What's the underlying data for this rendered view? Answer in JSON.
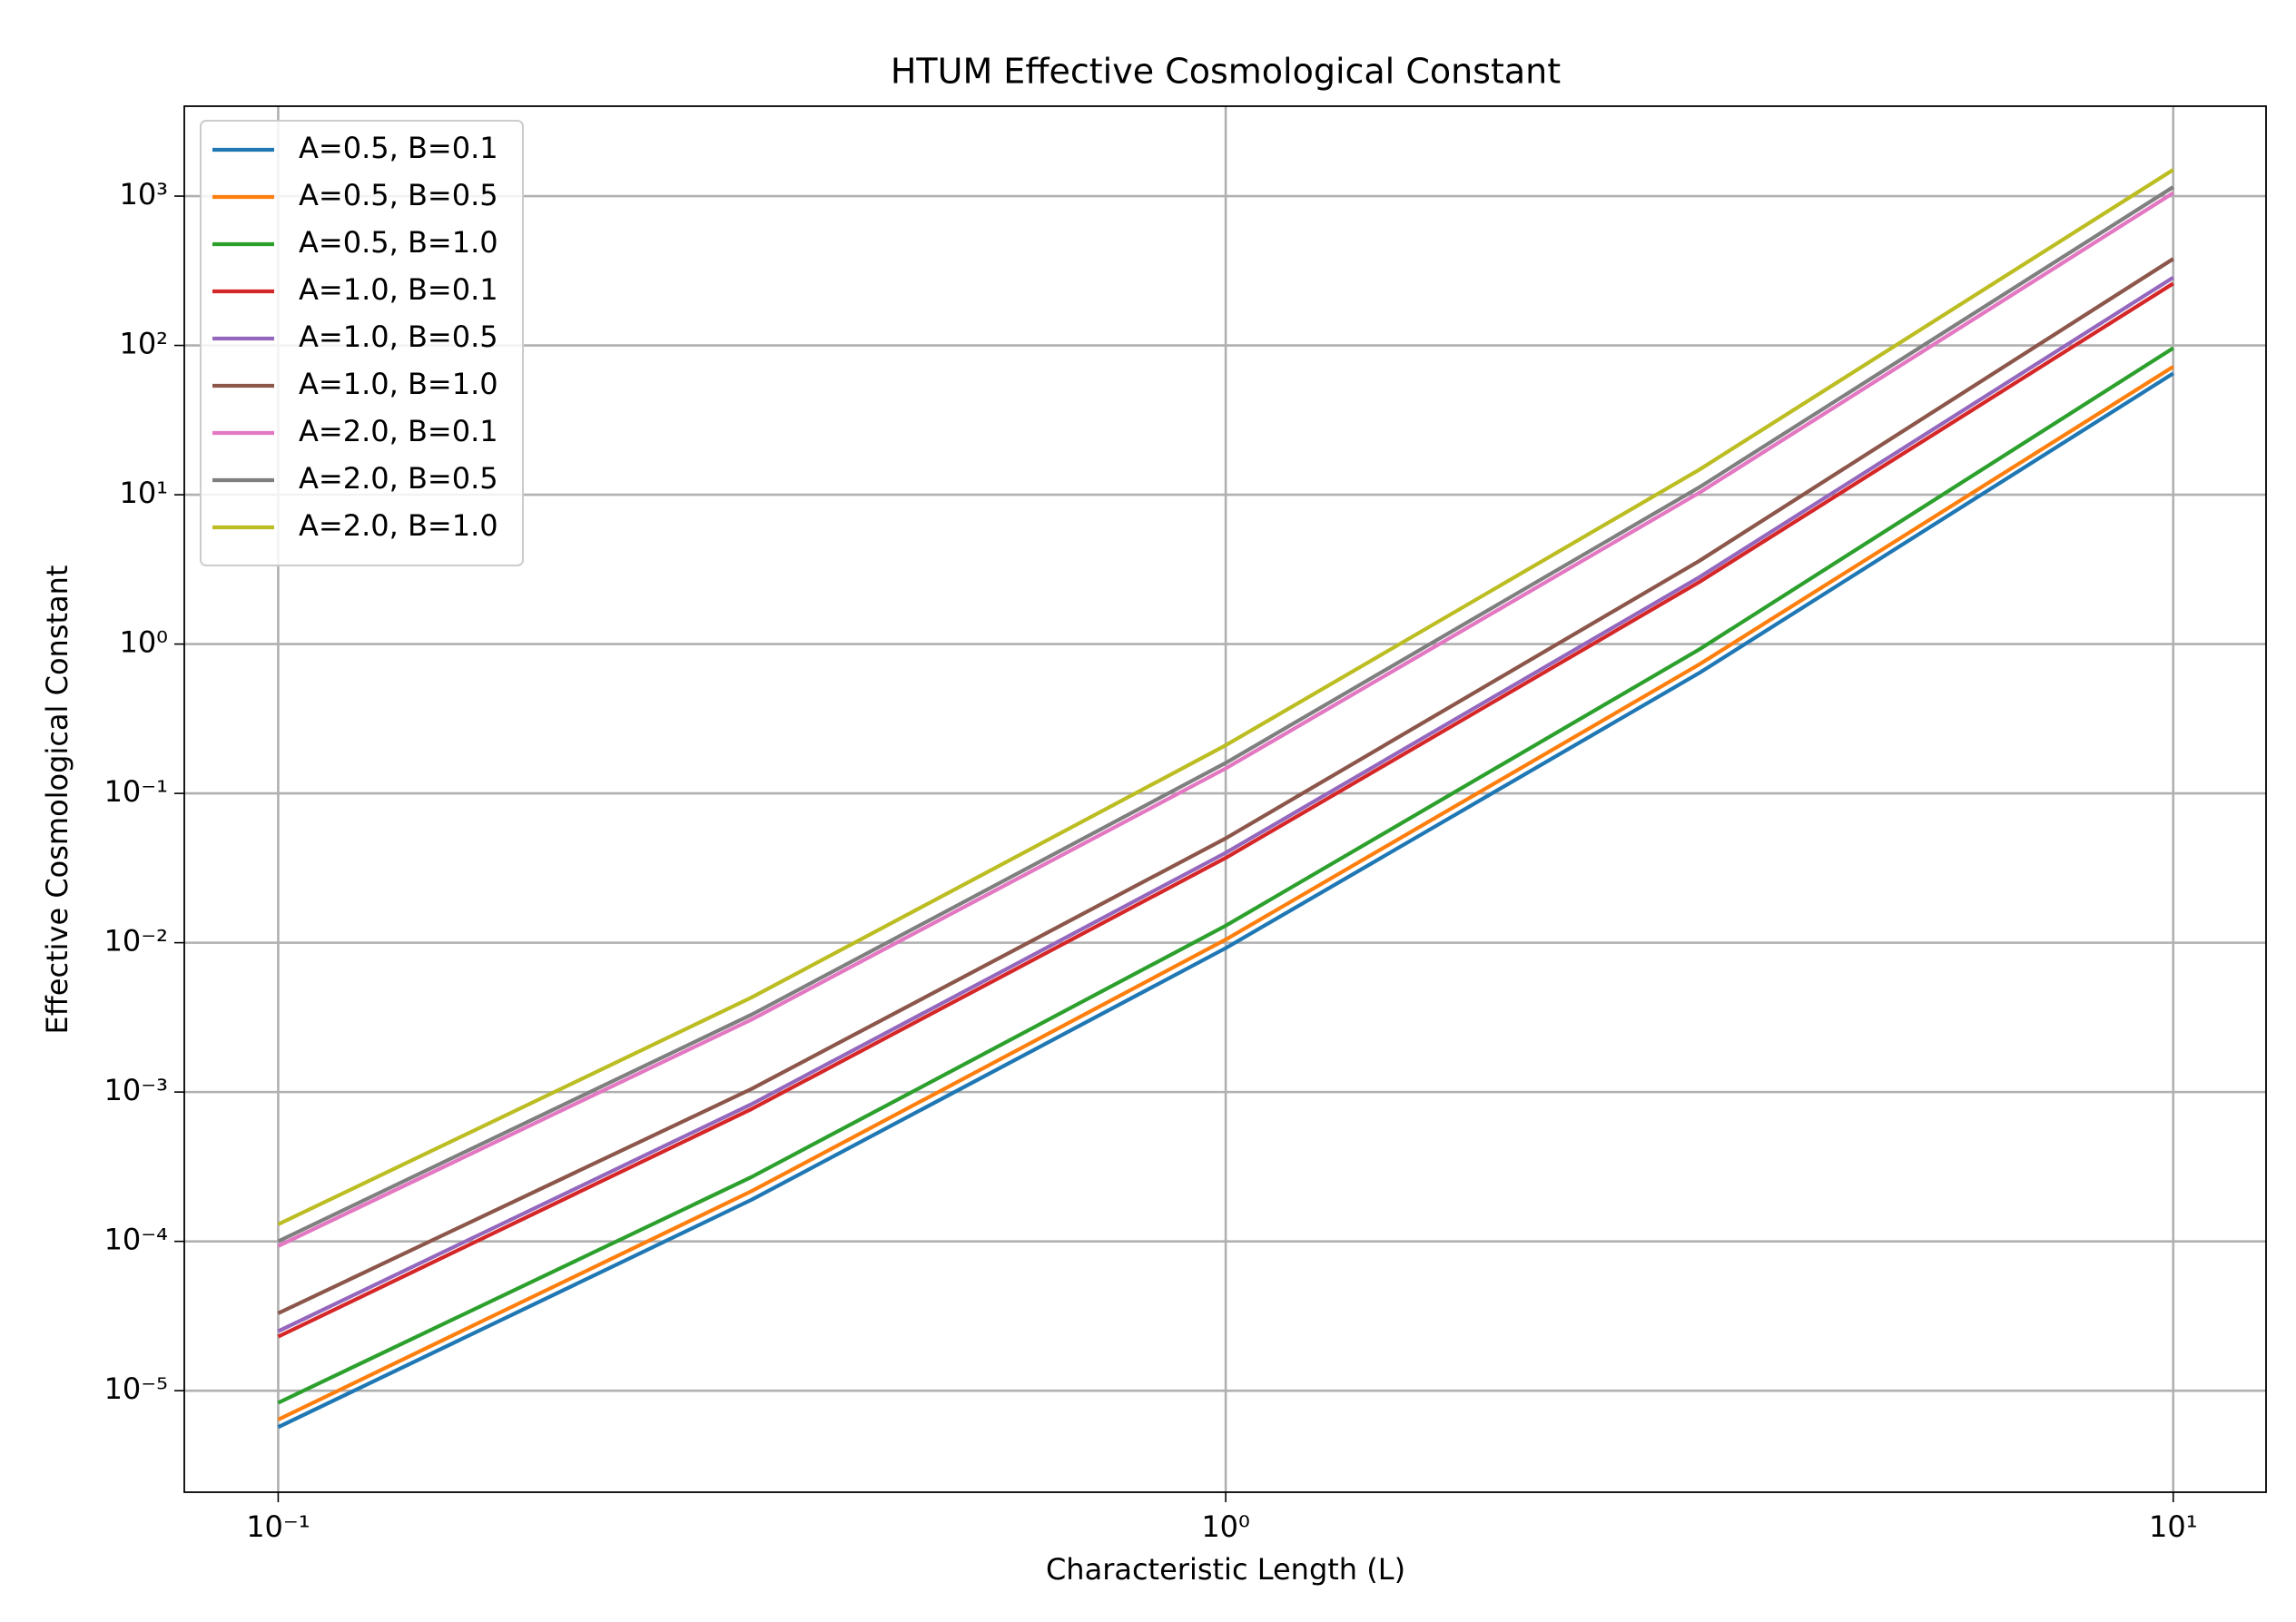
{
  "chart_data": {
    "type": "line",
    "title": "HTUM Effective Cosmological Constant",
    "x_label": "Characteristic Length (L)",
    "y_label": "Effective Cosmological Constant",
    "xscale": "log",
    "yscale": "log",
    "grid": true,
    "legend": "upper left",
    "x": [
      0.1,
      0.316,
      1,
      3.16,
      10
    ],
    "xlim": [
      0.0796,
      12.53
    ],
    "ylim": [
      2.09e-06,
      4000
    ],
    "xticks": [
      {
        "value": 0.1,
        "label": "10⁻¹"
      },
      {
        "value": 1,
        "label": "10⁰"
      },
      {
        "value": 10,
        "label": "10¹"
      }
    ],
    "yticks": [
      {
        "value": 1e-05,
        "label": "10⁻⁵"
      },
      {
        "value": 0.0001,
        "label": "10⁻⁴"
      },
      {
        "value": 0.001,
        "label": "10⁻³"
      },
      {
        "value": 0.01,
        "label": "10⁻²"
      },
      {
        "value": 0.1,
        "label": "10⁻¹"
      },
      {
        "value": 1,
        "label": "10⁰"
      },
      {
        "value": 10,
        "label": "10¹"
      },
      {
        "value": 100,
        "label": "10²"
      },
      {
        "value": 1000,
        "label": "10³"
      }
    ],
    "series": [
      {
        "name": "A=0.5, B=0.1",
        "color": "#1f77b4",
        "values": [
          5.7e-06,
          0.00019,
          0.0092,
          0.64,
          65
        ]
      },
      {
        "name": "A=0.5, B=0.5",
        "color": "#ff7f0e",
        "values": [
          6.4e-06,
          0.000217,
          0.0105,
          0.73,
          72
        ]
      },
      {
        "name": "A=0.5, B=1.0",
        "color": "#2ca02c",
        "values": [
          8.3e-06,
          0.00027,
          0.013,
          0.92,
          96
        ]
      },
      {
        "name": "A=1.0, B=0.1",
        "color": "#d62728",
        "values": [
          2.3e-05,
          0.00077,
          0.037,
          2.6,
          260
        ]
      },
      {
        "name": "A=1.0, B=0.5",
        "color": "#9467bd",
        "values": [
          2.5e-05,
          0.00083,
          0.04,
          2.8,
          285
        ]
      },
      {
        "name": "A=1.0, B=1.0",
        "color": "#8c564b",
        "values": [
          3.3e-05,
          0.00105,
          0.05,
          3.6,
          380
        ]
      },
      {
        "name": "A=2.0, B=0.1",
        "color": "#e377c2",
        "values": [
          9.3e-05,
          0.00306,
          0.147,
          10.3,
          1050
        ]
      },
      {
        "name": "A=2.0, B=0.5",
        "color": "#7f7f7f",
        "values": [
          0.0001,
          0.0033,
          0.16,
          11.2,
          1150
        ]
      },
      {
        "name": "A=2.0, B=1.0",
        "color": "#bcbd22",
        "values": [
          0.00013,
          0.0043,
          0.21,
          14.7,
          1500
        ]
      }
    ]
  }
}
